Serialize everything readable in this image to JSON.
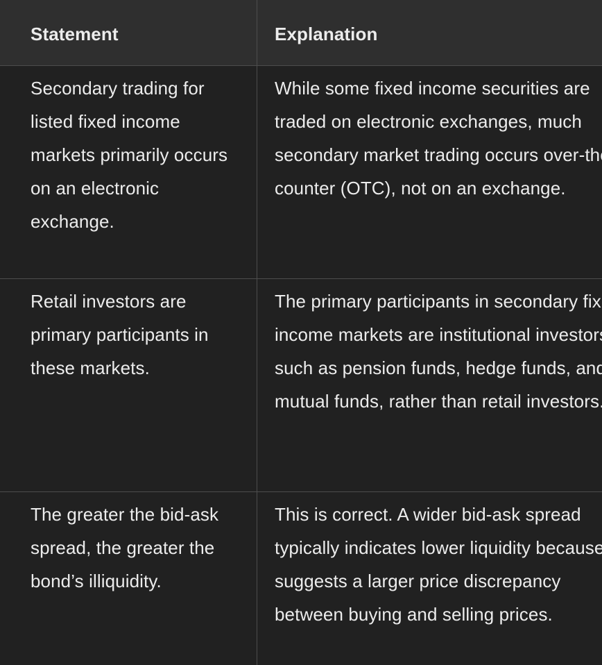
{
  "table": {
    "headers": [
      "Statement",
      "Explanation"
    ],
    "rows": [
      {
        "statement": "Secondary trading for listed fixed income markets primarily occurs on an electronic exchange.",
        "explanation": "While some fixed income securities are traded on electronic exchanges, much secondary market trading occurs over-the-counter (OTC), not on an exchange."
      },
      {
        "statement": "Retail investors are primary participants in these markets.",
        "explanation": "The primary participants in secondary fixed income markets are institutional investors, such as pension funds, hedge funds, and mutual funds, rather than retail investors."
      },
      {
        "statement": "The greater the bid-ask spread, the greater the bond’s illiquidity.",
        "explanation": "This is correct. A wider bid-ask spread typically indicates lower liquidity because it suggests a larger price discrepancy between buying and selling prices."
      }
    ]
  }
}
